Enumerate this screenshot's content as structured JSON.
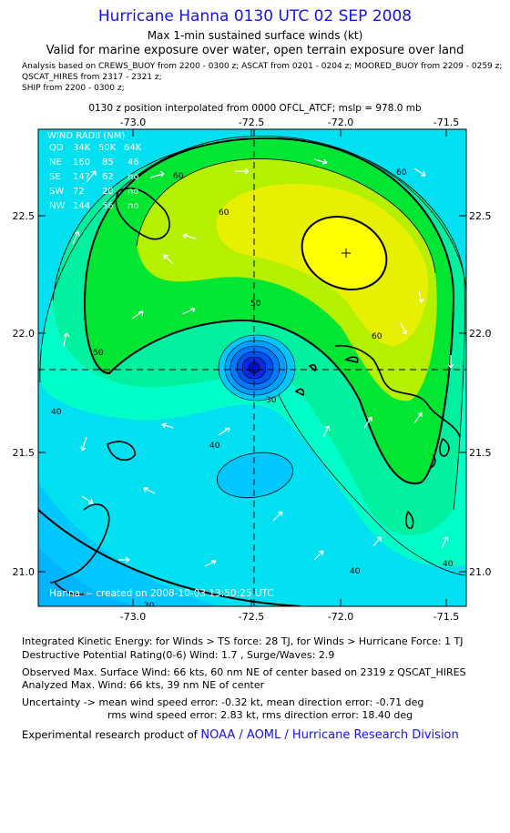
{
  "header": {
    "title": "Hurricane Hanna 0130 UTC 02 SEP 2008",
    "subtitle": "Max 1-min sustained surface winds (kt)",
    "validity": "Valid for marine exposure over water, open terrain exposure over land",
    "analysis_lines": [
      "Analysis based on  CREWS_BUOY from 2200 - 0300 z;  ASCAT from 0201 - 0204 z;  MOORED_BUOY from 2209 - 0259 z;",
      "QSCAT_HIRES from 2317 - 2321 z;",
      "SHIP from 2200 - 0300 z;"
    ],
    "position_note": "0130 z position interpolated from 0000 OFCL_ATCF; mslp = 978.0 mb"
  },
  "map": {
    "lon_ticks": [
      "-73.0",
      "-72.5",
      "-72.0",
      "-71.5"
    ],
    "lat_ticks": [
      "22.5",
      "22.0",
      "21.5",
      "21.0"
    ],
    "contour_labels": [
      "60",
      "60",
      "60",
      "50",
      "50",
      "60",
      "40",
      "40",
      "40",
      "30",
      "40",
      "30"
    ],
    "wind_radii": {
      "title": "WIND RADII (NM)",
      "header": [
        "QD",
        "34K",
        "50K",
        "64K"
      ],
      "rows": [
        [
          "NE",
          "160",
          "85",
          "46"
        ],
        [
          "SE",
          "147",
          "62",
          "no"
        ],
        [
          "SW",
          "72",
          "20",
          "no"
        ],
        [
          "NW",
          "144",
          "56",
          "no"
        ]
      ]
    },
    "credit": "Hanna — created on 2008-10-03 13:50:25 UTC",
    "colors": {
      "lt_blue": "#00c8ff",
      "cyan": "#00e0f0",
      "aqua": "#00ffc8",
      "spring": "#00f0a0",
      "green": "#00e632",
      "lime": "#b4f000",
      "yellow_green": "#e6f000",
      "yellow": "#ffff00",
      "core_blue": "#0a28e6"
    }
  },
  "info": {
    "ike": "Integrated Kinetic Energy:  for Winds > TS force: 28 TJ,  for Winds > Hurricane Force: 1 TJ",
    "dpr": "Destructive Potential Rating(0-6)   Wind: 1.7 , Surge/Waves: 2.9",
    "obs_max": "Observed Max. Surface Wind: 66 kts, 60 nm NE of center based on 2319 z QSCAT_HIRES",
    "ana_max": "Analyzed Max. Wind: 66 kts, 39 nm NE of center",
    "uncert1": "Uncertainty -> mean wind speed error:  -0.32 kt,   mean direction error:  -0.71 deg",
    "uncert2": "rms wind speed error: 2.83 kt,   rms direction error: 18.40 deg",
    "footer_prefix": "Experimental research product of ",
    "footer_org": "NOAA / AOML / Hurricane Research Division"
  }
}
